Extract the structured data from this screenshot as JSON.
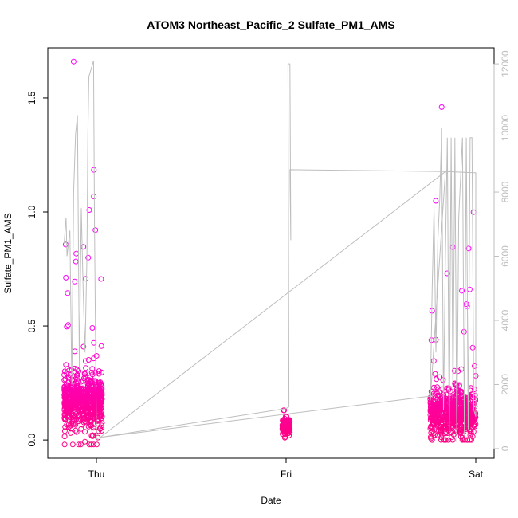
{
  "chart_data": {
    "type": "scatter",
    "title": "ATOM3 Northeast_Pacific_2 Sulfate_PM1_AMS",
    "xlabel": "Date",
    "ylabel": "Sulfate_PM1_AMS",
    "x_ticks": [
      "Thu",
      "Fri",
      "Sat"
    ],
    "x_range_days": [
      -0.2,
      2.0
    ],
    "ylim": [
      -0.08,
      1.72
    ],
    "y_ticks": [
      "0.0",
      "0.5",
      "1.0",
      "1.5"
    ],
    "y2lim": [
      -300,
      12500
    ],
    "y2_ticks": [
      "0",
      "2000",
      "4000",
      "6000",
      "8000",
      "10000",
      "12000"
    ],
    "series": [
      {
        "kind": "points",
        "color_low": "#ff0080",
        "color_high": "#ff00ff",
        "clusters": [
          {
            "start_day": -0.17,
            "end_day": 0.03,
            "median": 0.17,
            "spread": 0.09,
            "max": 1.66,
            "min": -0.02
          },
          {
            "start_day": 0.98,
            "end_day": 1.02,
            "median": 0.06,
            "spread": 0.025,
            "max": 0.13,
            "min": 0.01
          },
          {
            "start_day": 1.76,
            "end_day": 2.0,
            "median": 0.12,
            "spread": 0.07,
            "max": 1.46,
            "min": 0.0
          }
        ]
      },
      {
        "kind": "line",
        "axis": "right",
        "color": "#bebebe",
        "points": [
          [
            -0.17,
            6400
          ],
          [
            -0.16,
            7200
          ],
          [
            -0.155,
            6000
          ],
          [
            -0.14,
            6800
          ],
          [
            -0.13,
            2000
          ],
          [
            -0.12,
            8000
          ],
          [
            -0.11,
            9800
          ],
          [
            -0.1,
            10400
          ],
          [
            -0.09,
            2500
          ],
          [
            -0.08,
            7500
          ],
          [
            -0.07,
            5000
          ],
          [
            -0.06,
            3000
          ],
          [
            -0.05,
            6000
          ],
          [
            -0.045,
            9800
          ],
          [
            -0.04,
            11600
          ],
          [
            -0.03,
            11800
          ],
          [
            -0.02,
            12000
          ],
          [
            -0.015,
            12100
          ],
          [
            -0.01,
            7000
          ],
          [
            0.0,
            300
          ],
          [
            0.02,
            350
          ],
          [
            1.0,
            1250
          ],
          [
            1.015,
            1300
          ],
          [
            1.01,
            12000
          ],
          [
            1.02,
            12000
          ],
          [
            1.025,
            6500
          ],
          [
            1.02,
            8700
          ],
          [
            1.84,
            8640
          ],
          [
            1.76,
            1500
          ],
          [
            1.77,
            5000
          ],
          [
            1.78,
            7500
          ],
          [
            1.79,
            3000
          ],
          [
            1.8,
            6500
          ],
          [
            1.81,
            7800
          ],
          [
            1.82,
            10000
          ],
          [
            1.83,
            1200
          ],
          [
            1.84,
            6000
          ],
          [
            1.85,
            9700
          ],
          [
            1.86,
            300
          ],
          [
            1.87,
            9700
          ],
          [
            1.88,
            1500
          ],
          [
            1.89,
            9700
          ],
          [
            1.9,
            200
          ],
          [
            1.91,
            7200
          ],
          [
            1.93,
            9700
          ],
          [
            1.94,
            400
          ],
          [
            1.95,
            9700
          ],
          [
            1.96,
            600
          ],
          [
            1.97,
            9700
          ],
          [
            1.98,
            9700
          ],
          [
            1.99,
            1200
          ],
          [
            2.0,
            1000
          ],
          [
            2.0,
            8600
          ],
          [
            1.84,
            8640
          ],
          [
            0.02,
            350
          ],
          [
            1.78,
            1650
          ]
        ]
      }
    ],
    "grid": false
  }
}
